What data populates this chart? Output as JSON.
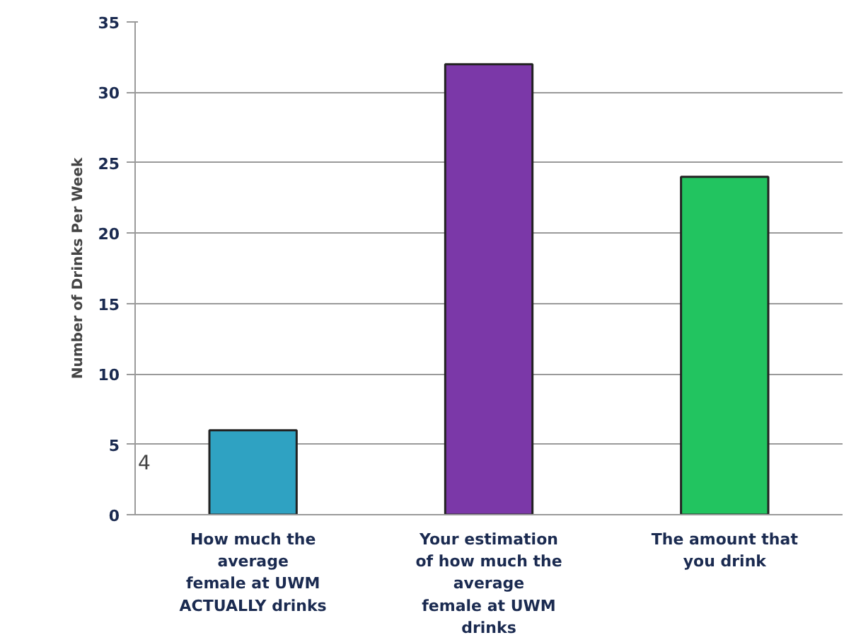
{
  "chart_data": {
    "type": "bar",
    "ylabel": "Number of Drinks Per Week",
    "categories": [
      "How much the\naverage\nfemale at UWM\nACTUALLY drinks",
      "Your estimation\nof how much the\naverage\nfemale at UWM\ndrinks",
      "The amount that\nyou drink"
    ],
    "values": [
      6,
      32,
      24
    ],
    "colors": [
      "#2fa2c2",
      "#7b38a8",
      "#22c460"
    ],
    "ylim": [
      0,
      35
    ],
    "yticks": [
      0,
      5,
      10,
      15,
      20,
      25,
      30,
      35
    ],
    "grid": "y",
    "annotations": [
      "4"
    ]
  }
}
